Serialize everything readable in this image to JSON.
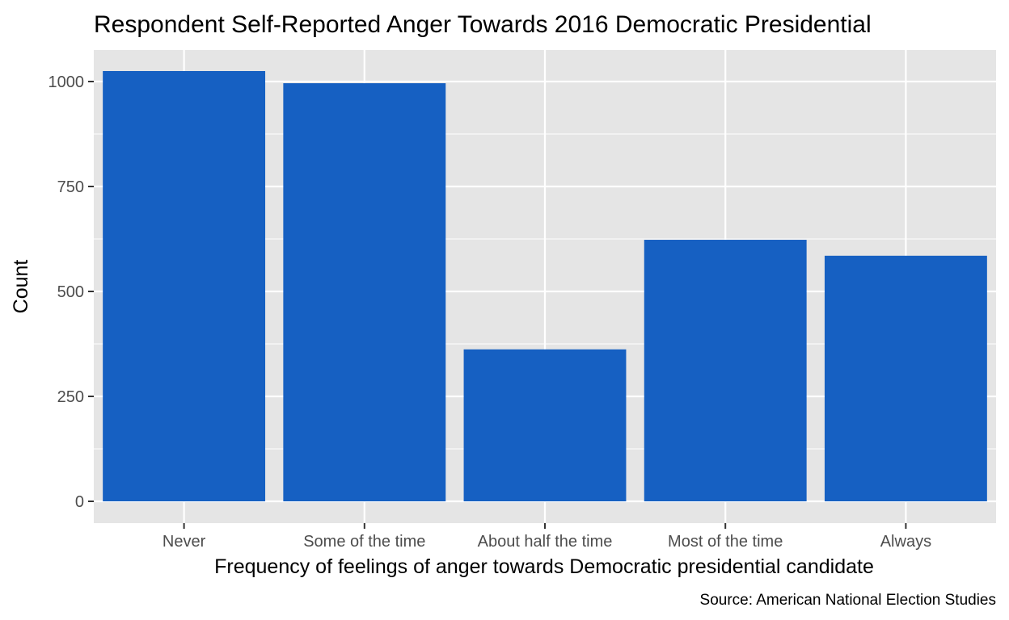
{
  "chart_data": {
    "type": "bar",
    "title": "Respondent Self-Reported Anger Towards 2016 Democratic Presidential",
    "xlabel": "Frequency of feelings of anger towards Democratic presidential candidate",
    "ylabel": "Count",
    "caption": "Source: American National Election Studies",
    "categories": [
      "Never",
      "Some of the time",
      "About half the time",
      "Most of the time",
      "Always"
    ],
    "values": [
      1025,
      996,
      362,
      623,
      585
    ],
    "ylim": [
      0,
      1075
    ],
    "yticks": [
      0,
      250,
      500,
      750,
      1000
    ],
    "grid": true,
    "legend": "none",
    "colors": {
      "bar": "#1660c2",
      "panel": "#e5e5e5",
      "grid": "#ffffff"
    }
  }
}
